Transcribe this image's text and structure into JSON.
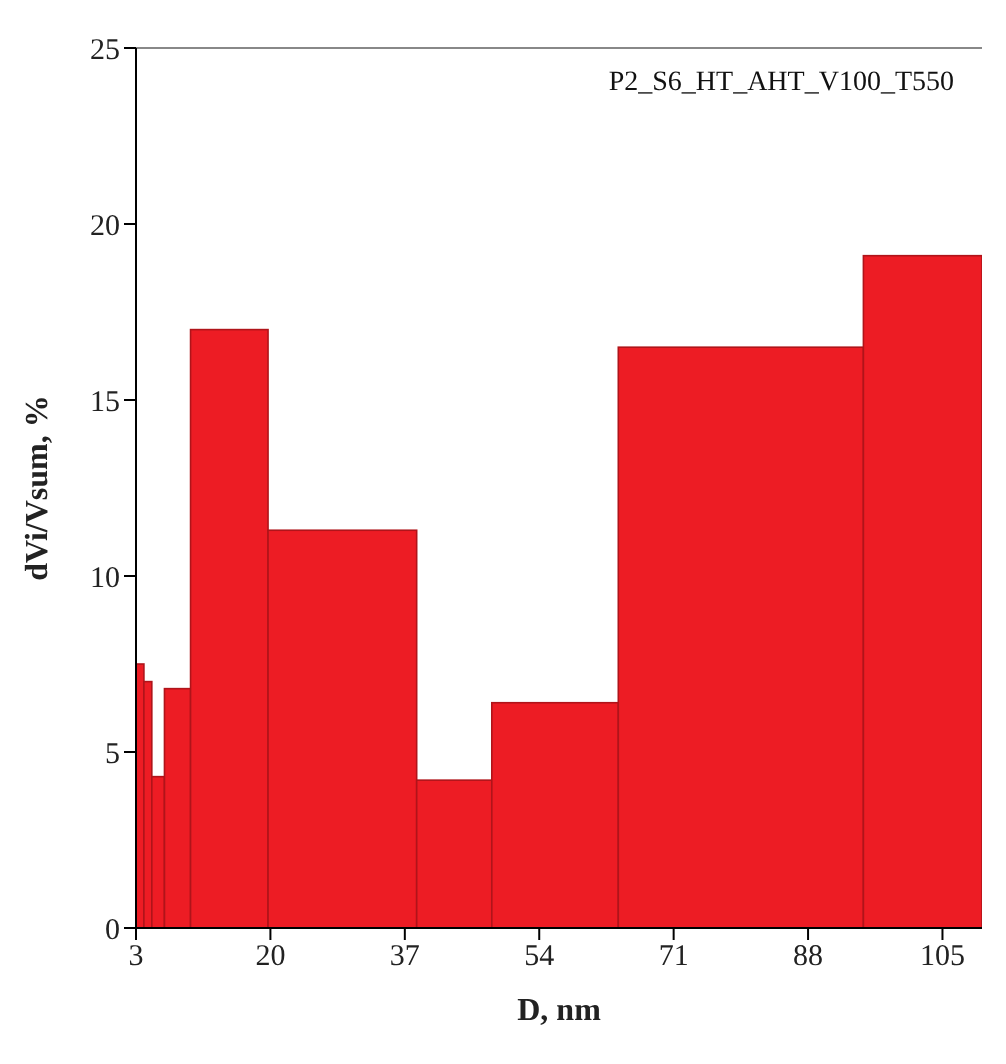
{
  "chart_data": {
    "type": "histogram",
    "xlabel": "D, nm",
    "ylabel": "dVi/Vsum, %",
    "annotations": [
      "P2_S6_HT_AHT_V100_T550"
    ],
    "bins": [
      3,
      4,
      5,
      6.6,
      9.9,
      19.7,
      38.5,
      48,
      64,
      95,
      110
    ],
    "values": [
      7.5,
      7.0,
      4.3,
      6.8,
      17.0,
      11.3,
      4.2,
      6.4,
      16.5,
      19.1
    ],
    "color": "#ed1c24",
    "xlim": [
      3,
      110
    ],
    "xticks": [
      3,
      20,
      37,
      54,
      71,
      88,
      105
    ],
    "ylim": [
      0,
      25
    ],
    "yticks": [
      0,
      5,
      10,
      15,
      20,
      25
    ]
  }
}
